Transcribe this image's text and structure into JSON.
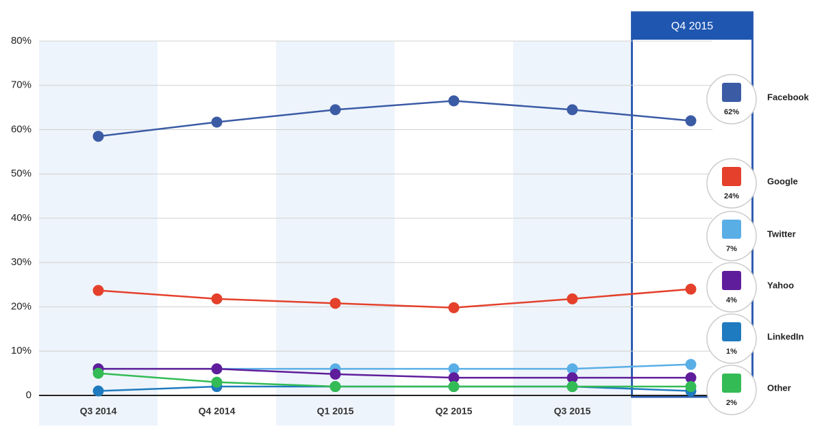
{
  "chart_data": {
    "type": "line",
    "categories": [
      "Q3 2014",
      "Q4 2014",
      "Q1 2015",
      "Q2 2015",
      "Q3 2015",
      "Q4 2015"
    ],
    "ylim": [
      0,
      80
    ],
    "yticks": [
      0,
      {
        "value": 10,
        "label": "10%"
      },
      {
        "value": 20,
        "label": "20%"
      },
      {
        "value": 30,
        "label": "30%"
      },
      {
        "value": 40,
        "label": "40%"
      },
      {
        "value": 50,
        "label": "50%"
      },
      {
        "value": 60,
        "label": "60%"
      },
      {
        "value": 70,
        "label": "70%"
      },
      {
        "value": 80,
        "label": "80%"
      }
    ],
    "grid": true,
    "series": [
      {
        "name": "Facebook",
        "color": "#3b5ba5",
        "values": [
          58.5,
          61.7,
          64.5,
          66.5,
          64.5,
          62
        ],
        "label": "62%"
      },
      {
        "name": "Google",
        "color": "#e4402b",
        "values": [
          23.7,
          21.8,
          20.8,
          19.8,
          21.8,
          24
        ],
        "label": "24%"
      },
      {
        "name": "Twitter",
        "color": "#5aaee6",
        "values": [
          6,
          6,
          6,
          6,
          6,
          7
        ],
        "label": "7%"
      },
      {
        "name": "Yahoo",
        "color": "#5f1d9b",
        "values": [
          6,
          6,
          4.8,
          4,
          4,
          4
        ],
        "label": "4%"
      },
      {
        "name": "LinkedIn",
        "color": "#1f7bbf",
        "values": [
          1,
          2,
          2,
          2,
          2,
          1
        ],
        "label": "1%"
      },
      {
        "name": "Other",
        "color": "#33bb55",
        "values": [
          5,
          3,
          2,
          2,
          2,
          2
        ],
        "label": "2%"
      }
    ]
  }
}
